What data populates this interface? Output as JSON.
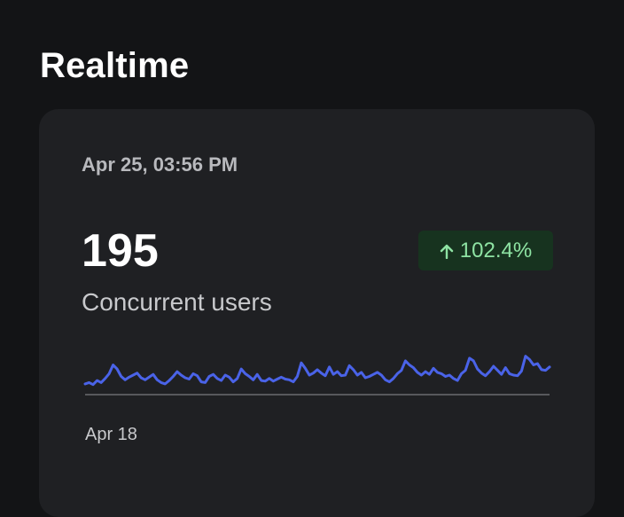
{
  "page": {
    "title": "Realtime"
  },
  "card": {
    "timestamp": "Apr 25, 03:56 PM",
    "metric": {
      "value": "195",
      "label": "Concurrent users"
    },
    "change": {
      "direction": "up",
      "value": "102.4%",
      "icon": "arrow-up-icon",
      "color": "#8ee3a3",
      "background": "#17331f"
    },
    "axis_start_label": "Apr 18",
    "sparkline_color": "#4a63e8"
  },
  "chart_data": {
    "type": "line",
    "title": "",
    "xlabel": "",
    "ylabel": "",
    "x_tick_labels": [
      "Apr 18"
    ],
    "grid": false,
    "series": [
      {
        "color": "#4a63e8",
        "values": [
          58,
          60,
          57,
          63,
          60,
          66,
          73,
          86,
          80,
          69,
          64,
          68,
          71,
          74,
          67,
          64,
          68,
          72,
          64,
          60,
          58,
          63,
          69,
          76,
          71,
          67,
          65,
          73,
          70,
          61,
          60,
          69,
          72,
          66,
          63,
          71,
          68,
          61,
          66,
          80,
          73,
          69,
          64,
          72,
          63,
          62,
          66,
          62,
          65,
          68,
          65,
          64,
          61,
          69,
          89,
          81,
          71,
          74,
          79,
          74,
          70,
          83,
          72,
          76,
          70,
          71,
          85,
          79,
          71,
          75,
          67,
          69,
          72,
          75,
          71,
          64,
          61,
          66,
          73,
          78,
          92,
          86,
          82,
          75,
          71,
          76,
          72,
          81,
          75,
          73,
          69,
          71,
          66,
          63,
          73,
          78,
          96,
          92,
          80,
          74,
          70,
          76,
          84,
          78,
          72,
          82,
          73,
          71,
          70,
          77,
          99,
          94,
          86,
          88,
          79,
          78,
          83
        ]
      }
    ]
  }
}
